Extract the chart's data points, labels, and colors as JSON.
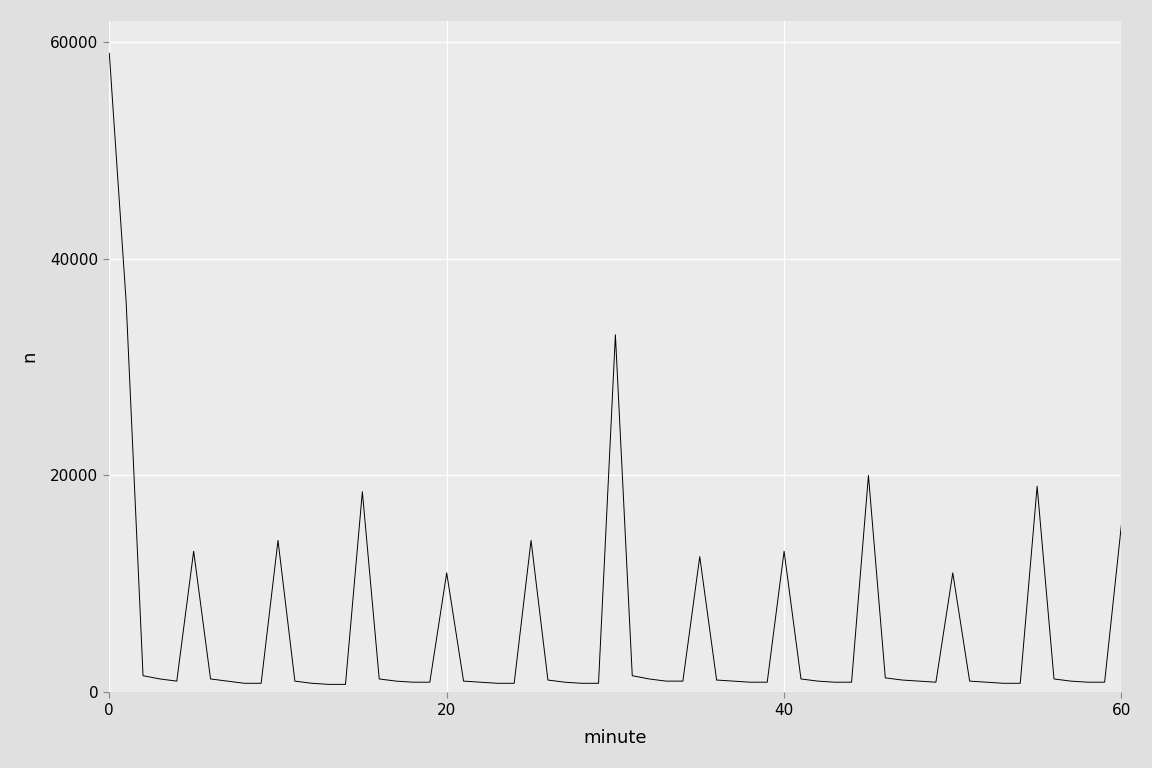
{
  "x": [
    0,
    1,
    2,
    3,
    4,
    5,
    6,
    7,
    8,
    9,
    10,
    11,
    12,
    13,
    14,
    15,
    16,
    17,
    18,
    19,
    20,
    21,
    22,
    23,
    24,
    25,
    26,
    27,
    28,
    29,
    30,
    31,
    32,
    33,
    34,
    35,
    36,
    37,
    38,
    39,
    40,
    41,
    42,
    43,
    44,
    45,
    46,
    47,
    48,
    49,
    50,
    51,
    52,
    53,
    54,
    55,
    56,
    57,
    58,
    59,
    60
  ],
  "y": [
    59000,
    36000,
    1500,
    1200,
    1000,
    13000,
    1200,
    1000,
    800,
    800,
    14000,
    1000,
    800,
    700,
    700,
    18500,
    1200,
    1000,
    900,
    900,
    11000,
    1000,
    900,
    800,
    800,
    14000,
    1100,
    900,
    800,
    800,
    33000,
    1500,
    1200,
    1000,
    1000,
    12500,
    1100,
    1000,
    900,
    900,
    13000,
    1200,
    1000,
    900,
    900,
    20000,
    1300,
    1100,
    1000,
    900,
    11000,
    1000,
    900,
    800,
    800,
    19000,
    1200,
    1000,
    900,
    900,
    15500
  ],
  "xlabel": "minute",
  "ylabel": "n",
  "xlim": [
    0,
    60
  ],
  "ylim": [
    0,
    62000
  ],
  "xticks": [
    0,
    20,
    40,
    60
  ],
  "yticks": [
    0,
    20000,
    40000,
    60000
  ],
  "ytick_labels": [
    "0",
    "20000",
    "40000",
    "60000"
  ],
  "panel_bg_color": "#EBEBEB",
  "outer_bg_color": "#E0E0E0",
  "line_color": "#000000",
  "grid_color": "#FFFFFF",
  "axis_label_fontsize": 13,
  "tick_fontsize": 11,
  "line_width": 0.7
}
